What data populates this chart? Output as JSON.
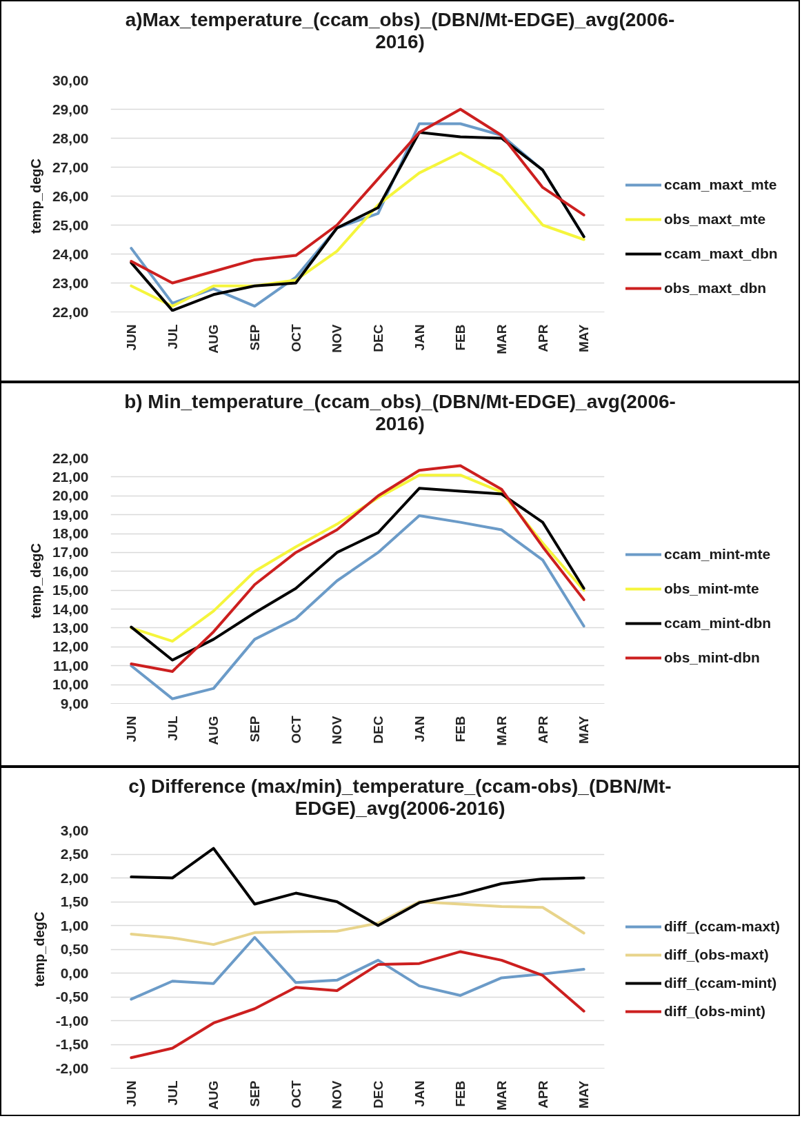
{
  "chart_data": [
    {
      "type": "line",
      "title": "a)Max_temperature_(ccam_obs)_(DBN/Mt-EDGE)_avg(2006-2016)",
      "ylabel": "temp_degC",
      "categories": [
        "JUN",
        "JUL",
        "AUG",
        "SEP",
        "OCT",
        "NOV",
        "DEC",
        "JAN",
        "FEB",
        "MAR",
        "APR",
        "MAY"
      ],
      "series": [
        {
          "name": "ccam_maxt_mte",
          "color": "#6b9bc8",
          "values": [
            24.2,
            22.3,
            22.8,
            22.2,
            23.2,
            24.9,
            25.4,
            28.5,
            28.5,
            28.1,
            26.9,
            24.6
          ]
        },
        {
          "name": "obs_maxt_mte",
          "color": "#f5f53c",
          "values": [
            22.9,
            22.2,
            22.9,
            22.9,
            23.1,
            24.1,
            25.7,
            26.8,
            27.5,
            26.7,
            25.0,
            24.5
          ]
        },
        {
          "name": "ccam_maxt_dbn",
          "color": "#000000",
          "values": [
            23.7,
            22.05,
            22.6,
            22.9,
            23.0,
            24.9,
            25.6,
            28.2,
            28.05,
            28.0,
            26.9,
            24.6
          ]
        },
        {
          "name": "obs_maxt_dbn",
          "color": "#cc1f1f",
          "values": [
            23.75,
            23.0,
            23.4,
            23.8,
            23.95,
            25.0,
            26.6,
            28.2,
            29.0,
            28.1,
            26.3,
            25.35
          ]
        }
      ],
      "ylim": [
        22,
        30
      ],
      "yticks": [
        {
          "value": 22,
          "label": "22,00"
        },
        {
          "value": 23,
          "label": "23,00"
        },
        {
          "value": 24,
          "label": "24,00"
        },
        {
          "value": 25,
          "label": "25,00"
        },
        {
          "value": 26,
          "label": "26,00"
        },
        {
          "value": 27,
          "label": "27,00"
        },
        {
          "value": 28,
          "label": "28,00"
        },
        {
          "value": 29,
          "label": "29,00"
        },
        {
          "value": 30,
          "label": "30,00"
        }
      ],
      "grid": "y",
      "legend": "right"
    },
    {
      "type": "line",
      "title": "b) Min_temperature_(ccam_obs)_(DBN/Mt-EDGE)_avg(2006-2016)",
      "ylabel": "temp_degC",
      "categories": [
        "JUN",
        "JUL",
        "AUG",
        "SEP",
        "OCT",
        "NOV",
        "DEC",
        "JAN",
        "FEB",
        "MAR",
        "APR",
        "MAY"
      ],
      "series": [
        {
          "name": "ccam_mint-mte",
          "color": "#6b9bc8",
          "values": [
            11.0,
            9.25,
            9.8,
            12.4,
            13.5,
            15.5,
            17.0,
            18.95,
            18.6,
            18.2,
            16.6,
            13.1
          ]
        },
        {
          "name": "obs_mint-mte",
          "color": "#f5f53c",
          "values": [
            13.0,
            12.3,
            13.9,
            16.0,
            17.3,
            18.5,
            19.9,
            21.1,
            21.1,
            20.2,
            17.5,
            15.0
          ]
        },
        {
          "name": "ccam_mint-dbn",
          "color": "#000000",
          "values": [
            13.05,
            11.3,
            12.4,
            13.8,
            15.1,
            17.0,
            18.05,
            20.4,
            20.25,
            20.1,
            18.6,
            15.1
          ]
        },
        {
          "name": "obs_mint-dbn",
          "color": "#cc1f1f",
          "values": [
            11.1,
            10.7,
            12.8,
            15.3,
            17.0,
            18.2,
            20.0,
            21.35,
            21.6,
            20.35,
            17.3,
            14.5
          ]
        }
      ],
      "ylim": [
        9,
        22
      ],
      "yticks": [
        {
          "value": 9,
          "label": "9,00"
        },
        {
          "value": 10,
          "label": "10,00"
        },
        {
          "value": 11,
          "label": "11,00"
        },
        {
          "value": 12,
          "label": "12,00"
        },
        {
          "value": 13,
          "label": "13,00"
        },
        {
          "value": 14,
          "label": "14,00"
        },
        {
          "value": 15,
          "label": "15,00"
        },
        {
          "value": 16,
          "label": "16,00"
        },
        {
          "value": 17,
          "label": "17,00"
        },
        {
          "value": 18,
          "label": "18,00"
        },
        {
          "value": 19,
          "label": "19,00"
        },
        {
          "value": 20,
          "label": "20,00"
        },
        {
          "value": 21,
          "label": "21,00"
        },
        {
          "value": 22,
          "label": "22,00"
        }
      ],
      "grid": "y",
      "legend": "right"
    },
    {
      "type": "line",
      "title": "c) Difference (max/min)_temperature_(ccam-obs)_(DBN/Mt-EDGE)_avg(2006-2016)",
      "ylabel": "temp_degC",
      "categories": [
        "JUN",
        "JUL",
        "AUG",
        "SEP",
        "OCT",
        "NOV",
        "DEC",
        "JAN",
        "FEB",
        "MAR",
        "APR",
        "MAY"
      ],
      "series": [
        {
          "name": "diff_(ccam-maxt)",
          "color": "#6b9bc8",
          "values": [
            -0.55,
            -0.17,
            -0.22,
            0.75,
            -0.2,
            -0.15,
            0.27,
            -0.27,
            -0.47,
            -0.1,
            -0.02,
            0.08
          ]
        },
        {
          "name": "diff_(obs-maxt)",
          "color": "#e8d48b",
          "values": [
            0.82,
            0.74,
            0.6,
            0.85,
            0.87,
            0.88,
            1.05,
            1.5,
            1.45,
            1.4,
            1.38,
            0.84
          ]
        },
        {
          "name": "diff_(ccam-mint)",
          "color": "#000000",
          "values": [
            2.02,
            2.0,
            2.62,
            1.45,
            1.68,
            1.5,
            1.0,
            1.48,
            1.65,
            1.88,
            1.98,
            2.0
          ]
        },
        {
          "name": "diff_(obs-mint)",
          "color": "#cc1f1f",
          "values": [
            -1.78,
            -1.58,
            -1.05,
            -0.75,
            -0.3,
            -0.37,
            0.18,
            0.2,
            0.45,
            0.27,
            -0.05,
            -0.8
          ]
        }
      ],
      "ylim": [
        -2,
        3
      ],
      "yticks": [
        {
          "value": -2,
          "label": "-2,00"
        },
        {
          "value": -1.5,
          "label": "-1,50"
        },
        {
          "value": -1,
          "label": "-1,00"
        },
        {
          "value": -0.5,
          "label": "-0,50"
        },
        {
          "value": 0,
          "label": "0,00"
        },
        {
          "value": 0.5,
          "label": "0,50"
        },
        {
          "value": 1,
          "label": "1,00"
        },
        {
          "value": 1.5,
          "label": "1,50"
        },
        {
          "value": 2,
          "label": "2,00"
        },
        {
          "value": 2.5,
          "label": "2,50"
        },
        {
          "value": 3,
          "label": "3,00"
        }
      ],
      "grid": "y",
      "legend": "right"
    }
  ]
}
